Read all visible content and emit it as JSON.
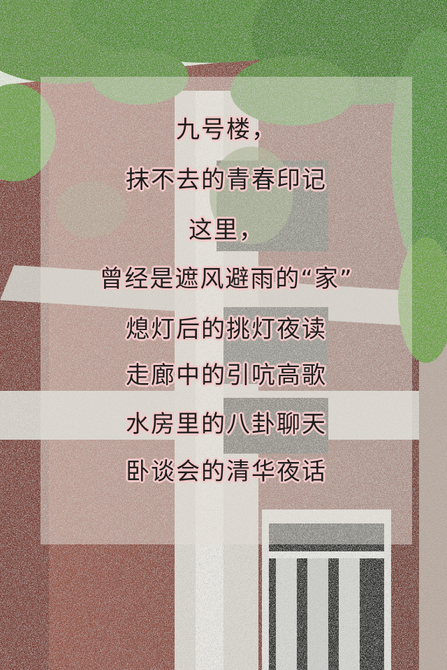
{
  "poem": {
    "lines": [
      "九号楼，",
      "抹不去的青春印记",
      "这里，",
      "曾经是遮风避雨的“家”",
      "熄灯后的挑灯夜读",
      "走廊中的引吭高歌",
      "水房里的八卦聊天",
      "卧谈会的清华夜话"
    ]
  },
  "colors": {
    "text": "#1e1e1e",
    "text_outline": "#f3c9c9",
    "overlay": "#e1ded6",
    "brick": "#8a4a3a",
    "foliage": "#4f8a2e"
  }
}
